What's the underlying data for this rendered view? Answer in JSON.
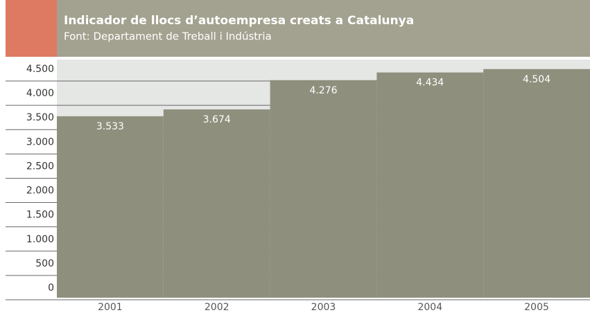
{
  "chart_data": {
    "type": "bar",
    "title": "Indicador de llocs d’autoempresa creats a Catalunya",
    "subtitle": "Font: Departament de Treball i Indústria",
    "categories": [
      "2001",
      "2002",
      "2003",
      "2004",
      "2005"
    ],
    "values": [
      3533,
      3674,
      4276,
      4434,
      4504
    ],
    "value_labels": [
      "3.533",
      "3.674",
      "4.276",
      "4.434",
      "4.504"
    ],
    "color": "#8f8f7d",
    "ylim": [
      -200,
      4700
    ],
    "yticks": [
      {
        "value": 0,
        "label": "0"
      },
      {
        "value": 500,
        "label": "500"
      },
      {
        "value": 1000,
        "label": "1.000"
      },
      {
        "value": 1500,
        "label": "1.500"
      },
      {
        "value": 2000,
        "label": "2.000"
      },
      {
        "value": 2500,
        "label": "2.500"
      },
      {
        "value": 3000,
        "label": "3.000"
      },
      {
        "value": 3500,
        "label": "3.500"
      },
      {
        "value": 4000,
        "label": "4.000"
      },
      {
        "value": 4500,
        "label": "4.500"
      }
    ],
    "grid": true
  }
}
